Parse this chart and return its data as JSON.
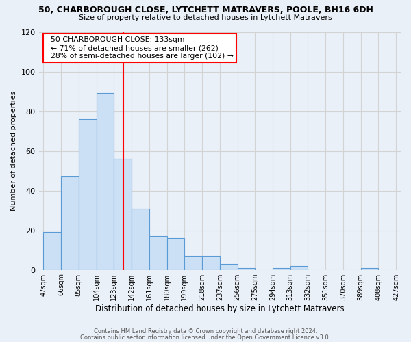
{
  "title": "50, CHARBOROUGH CLOSE, LYTCHETT MATRAVERS, POOLE, BH16 6DH",
  "subtitle": "Size of property relative to detached houses in Lytchett Matravers",
  "xlabel": "Distribution of detached houses by size in Lytchett Matravers",
  "ylabel": "Number of detached properties",
  "bin_edges": [
    47,
    66,
    85,
    104,
    123,
    142,
    161,
    180,
    199,
    218,
    237,
    256,
    275,
    294,
    313,
    332,
    351,
    370,
    389,
    408,
    427
  ],
  "counts": [
    19,
    47,
    76,
    89,
    56,
    31,
    17,
    16,
    7,
    7,
    3,
    1,
    0,
    1,
    2,
    0,
    0,
    0,
    1,
    0
  ],
  "bar_color": "#cce0f5",
  "bar_edge_color": "#5b9bd5",
  "vline_x": 133,
  "vline_color": "red",
  "ylim": [
    0,
    120
  ],
  "yticks": [
    0,
    20,
    40,
    60,
    80,
    100,
    120
  ],
  "annotation_title": "50 CHARBOROUGH CLOSE: 133sqm",
  "annotation_line1": "← 71% of detached houses are smaller (262)",
  "annotation_line2": "28% of semi-detached houses are larger (102) →",
  "annotation_box_color": "white",
  "annotation_box_edge": "red",
  "footnote1": "Contains HM Land Registry data © Crown copyright and database right 2024.",
  "footnote2": "Contains public sector information licensed under the Open Government Licence v3.0.",
  "background_color": "#eaf0f8"
}
